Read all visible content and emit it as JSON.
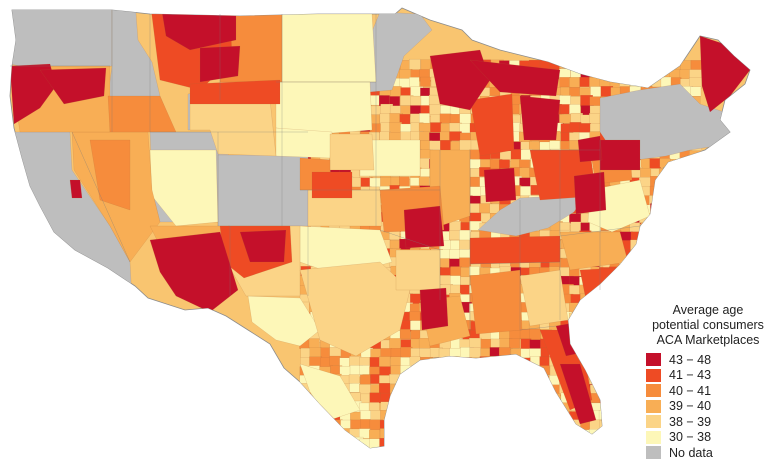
{
  "legend": {
    "title_lines": [
      "Average age",
      "potential consumers",
      "ACA Marketplaces"
    ],
    "items": [
      {
        "label": "43 − 48",
        "color": "#c4102a"
      },
      {
        "label": "41 − 43",
        "color": "#ee4b24"
      },
      {
        "label": "40 − 41",
        "color": "#f68c3c"
      },
      {
        "label": "39 − 40",
        "color": "#f8ae55"
      },
      {
        "label": "38 − 39",
        "color": "#fbd487"
      },
      {
        "label": "30 − 38",
        "color": "#fdf7b8"
      },
      {
        "label": "No data",
        "color": "#bebebe"
      }
    ]
  },
  "map_data": {
    "region": "Contiguous United States (county level)",
    "no_data_areas": [
      "Washington",
      "Idaho",
      "Utah",
      "Colorado",
      "California (most)",
      "Kentucky",
      "New York",
      "Vermont",
      "New Hampshire",
      "Massachusetts",
      "Connecticut",
      "Rhode Island"
    ],
    "highest_band_areas": [
      "Western Oregon",
      "Northwest Montana",
      "Northern Michigan",
      "Northern Wisconsin",
      "Maine",
      "Central Arizona",
      "Northern Florida",
      "Western Pennsylvania"
    ],
    "lowest_band_areas": [
      "North Dakota",
      "Eastern Montana",
      "West Texas",
      "Southern Utah border"
    ]
  }
}
